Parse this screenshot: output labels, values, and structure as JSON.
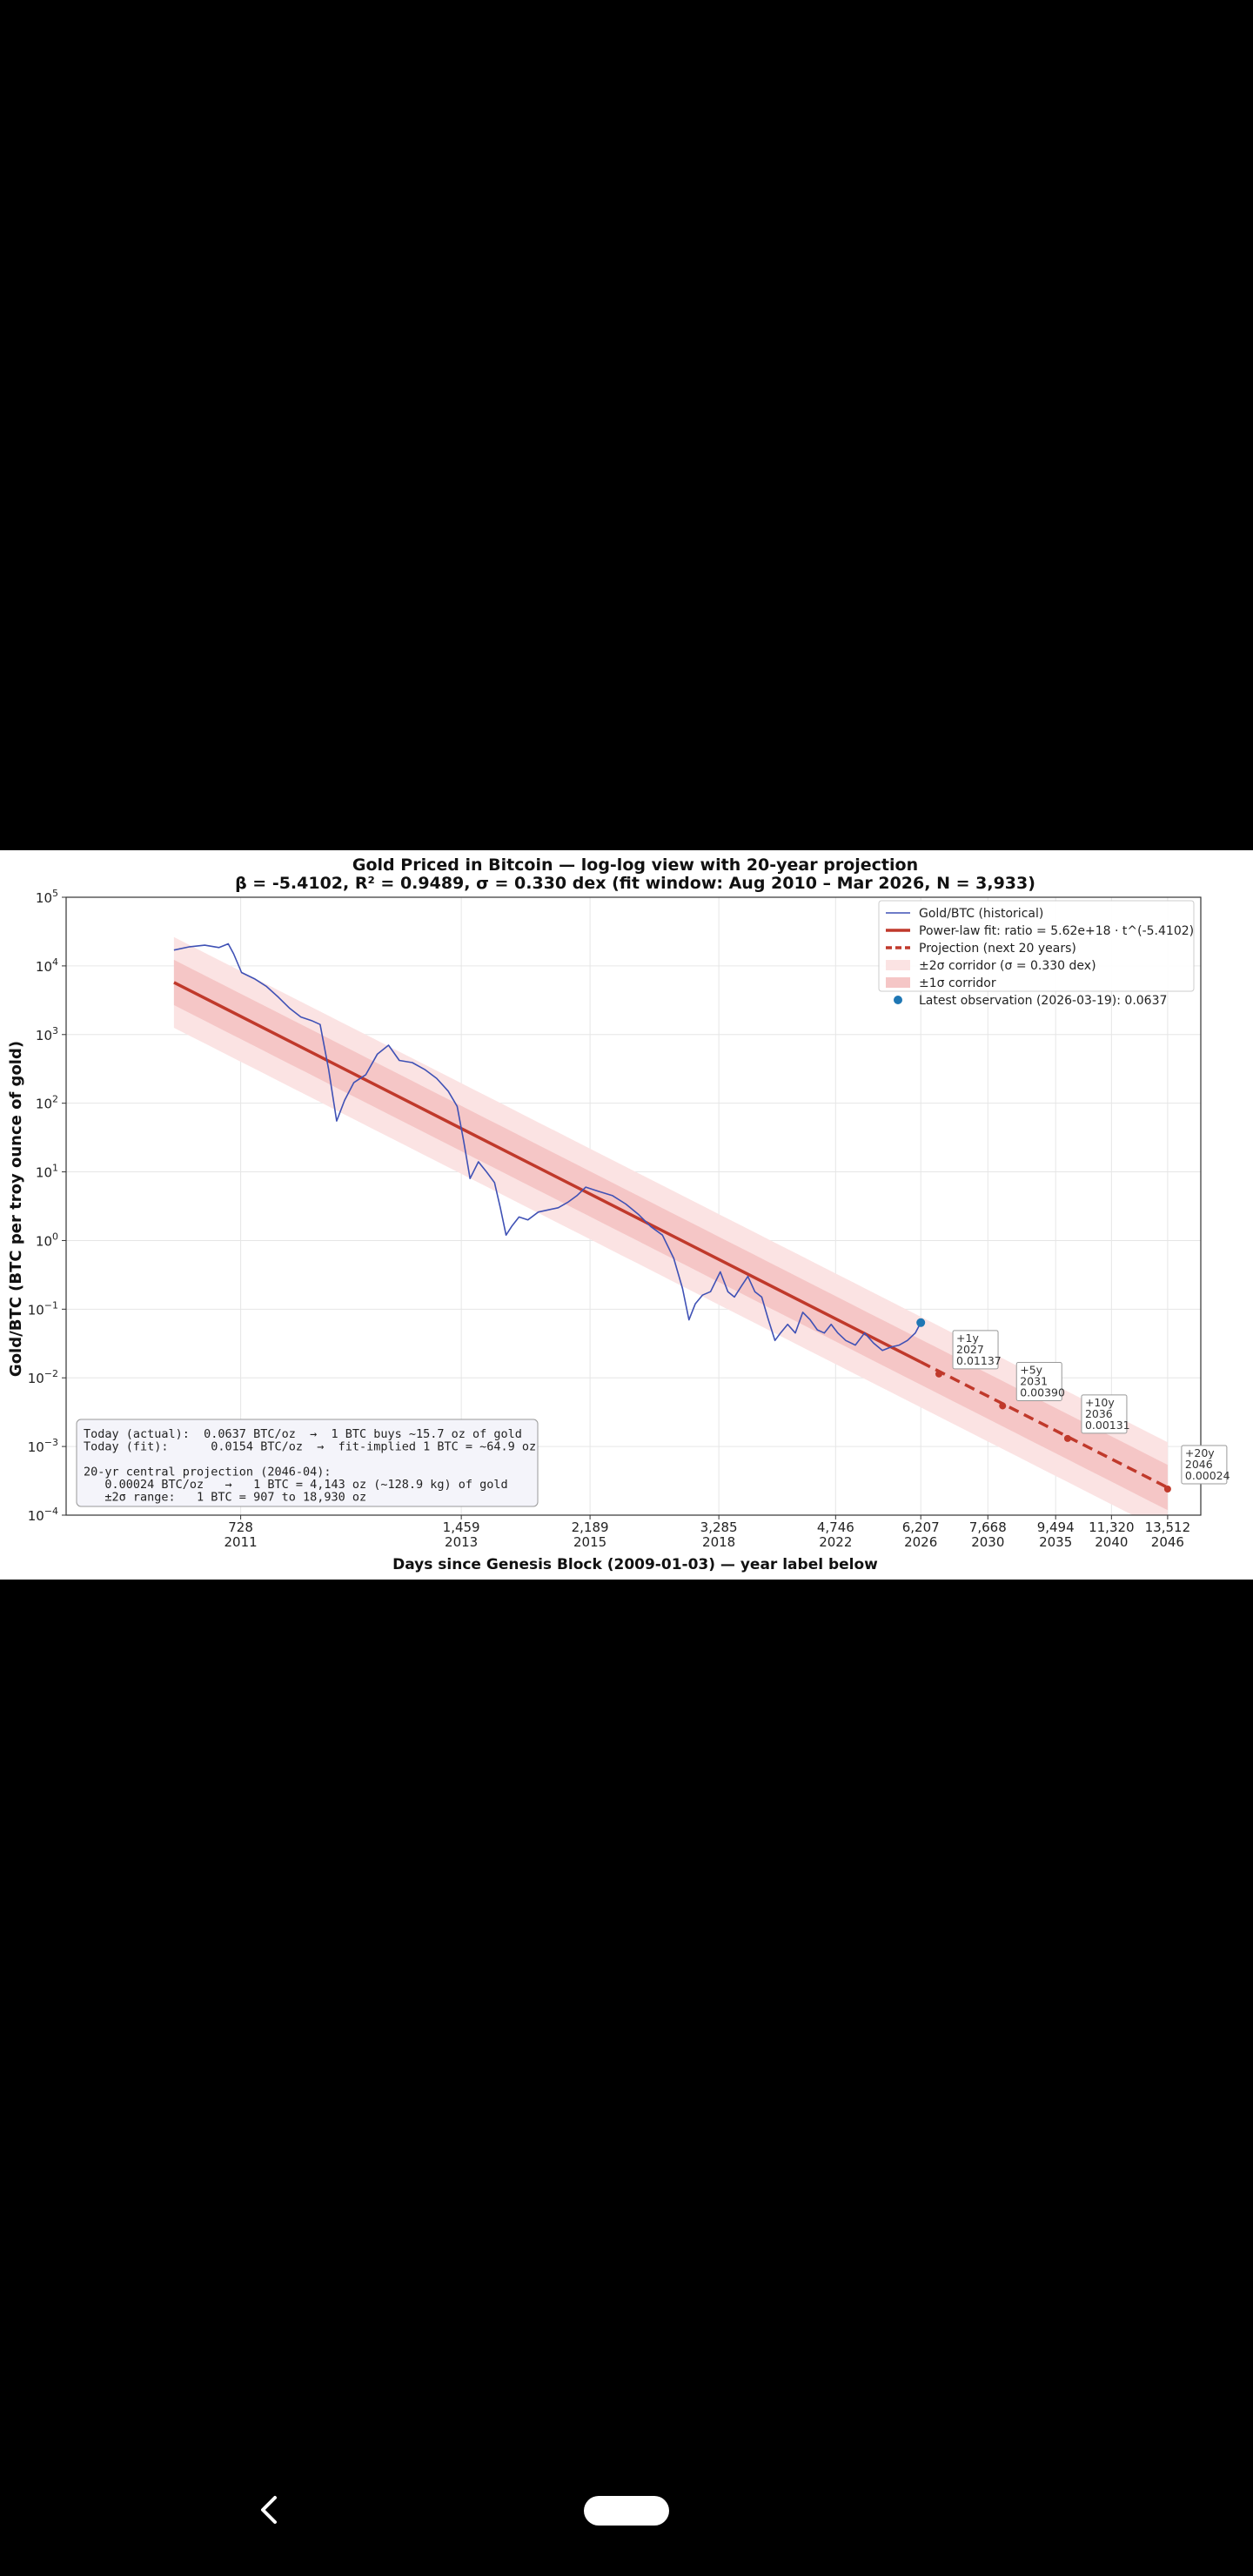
{
  "chart_data": {
    "type": "line",
    "title": "Gold Priced in Bitcoin — log-log view with 20-year projection",
    "subtitle": "β = -5.4102,   R² = 0.9489,   σ = 0.330 dex   (fit window: Aug 2010 – Mar 2026, N = 3,933)",
    "xlabel": "Days since Genesis Block (2009-01-03)   —   year label below",
    "ylabel": "Gold/BTC  (BTC per troy ounce of gold)",
    "x_scale": "log",
    "y_scale": "log",
    "xlim": [
      420,
      15000
    ],
    "ylim": [
      0.0001,
      100000
    ],
    "x_ticks": [
      {
        "day": 728,
        "label": "728",
        "year": "2011"
      },
      {
        "day": 1459,
        "label": "1,459",
        "year": "2013"
      },
      {
        "day": 2189,
        "label": "2,189",
        "year": "2015"
      },
      {
        "day": 3285,
        "label": "3,285",
        "year": "2018"
      },
      {
        "day": 4746,
        "label": "4,746",
        "year": "2022"
      },
      {
        "day": 6207,
        "label": "6,207",
        "year": "2026"
      },
      {
        "day": 7668,
        "label": "7,668",
        "year": "2030"
      },
      {
        "day": 9494,
        "label": "9,494",
        "year": "2035"
      },
      {
        "day": 11320,
        "label": "11,320",
        "year": "2040"
      },
      {
        "day": 13512,
        "label": "13,512",
        "year": "2046"
      }
    ],
    "y_ticks": [
      {
        "value": 0.0001,
        "base": "10",
        "exp": "−4"
      },
      {
        "value": 0.001,
        "base": "10",
        "exp": "−3"
      },
      {
        "value": 0.01,
        "base": "10",
        "exp": "−2"
      },
      {
        "value": 0.1,
        "base": "10",
        "exp": "−1"
      },
      {
        "value": 1,
        "base": "10",
        "exp": "0"
      },
      {
        "value": 10,
        "base": "10",
        "exp": "1"
      },
      {
        "value": 100,
        "base": "10",
        "exp": "2"
      },
      {
        "value": 1000,
        "base": "10",
        "exp": "3"
      },
      {
        "value": 10000,
        "base": "10",
        "exp": "4"
      },
      {
        "value": 100000,
        "base": "10",
        "exp": "5"
      }
    ],
    "fit": {
      "coefficient": 5.62e+18,
      "beta": -5.4102,
      "sigma_dex": 0.33,
      "x_start": 590,
      "x_end": 6207
    },
    "projection": {
      "x_start": 6207,
      "x_end": 13512
    },
    "series": [
      {
        "name": "Gold/BTC (historical)",
        "color": "#3f51b5",
        "points": [
          [
            590,
            17000
          ],
          [
            620,
            19000
          ],
          [
            650,
            20000
          ],
          [
            680,
            18500
          ],
          [
            700,
            21000
          ],
          [
            712,
            15000
          ],
          [
            730,
            8000
          ],
          [
            760,
            6500
          ],
          [
            790,
            5000
          ],
          [
            820,
            3500
          ],
          [
            850,
            2400
          ],
          [
            880,
            1800
          ],
          [
            910,
            1600
          ],
          [
            935,
            1400
          ],
          [
            960,
            320
          ],
          [
            985,
            55
          ],
          [
            1010,
            110
          ],
          [
            1040,
            200
          ],
          [
            1080,
            260
          ],
          [
            1120,
            520
          ],
          [
            1160,
            700
          ],
          [
            1200,
            420
          ],
          [
            1250,
            390
          ],
          [
            1300,
            310
          ],
          [
            1350,
            230
          ],
          [
            1400,
            150
          ],
          [
            1440,
            90
          ],
          [
            1470,
            28
          ],
          [
            1500,
            8
          ],
          [
            1540,
            14
          ],
          [
            1580,
            10
          ],
          [
            1620,
            7
          ],
          [
            1650,
            3
          ],
          [
            1680,
            1.2
          ],
          [
            1710,
            1.6
          ],
          [
            1750,
            2.2
          ],
          [
            1800,
            2.0
          ],
          [
            1860,
            2.6
          ],
          [
            1920,
            2.8
          ],
          [
            1980,
            3.0
          ],
          [
            2040,
            3.6
          ],
          [
            2100,
            4.5
          ],
          [
            2160,
            6
          ],
          [
            2250,
            5.2
          ],
          [
            2350,
            4.5
          ],
          [
            2450,
            3.4
          ],
          [
            2550,
            2.4
          ],
          [
            2650,
            1.6
          ],
          [
            2750,
            1.2
          ],
          [
            2850,
            0.55
          ],
          [
            2930,
            0.2
          ],
          [
            2990,
            0.07
          ],
          [
            3050,
            0.12
          ],
          [
            3120,
            0.16
          ],
          [
            3200,
            0.18
          ],
          [
            3300,
            0.35
          ],
          [
            3380,
            0.18
          ],
          [
            3450,
            0.15
          ],
          [
            3530,
            0.22
          ],
          [
            3600,
            0.3
          ],
          [
            3680,
            0.18
          ],
          [
            3760,
            0.15
          ],
          [
            3840,
            0.07
          ],
          [
            3920,
            0.035
          ],
          [
            3990,
            0.045
          ],
          [
            4080,
            0.06
          ],
          [
            4180,
            0.045
          ],
          [
            4280,
            0.09
          ],
          [
            4380,
            0.07
          ],
          [
            4480,
            0.05
          ],
          [
            4580,
            0.045
          ],
          [
            4680,
            0.06
          ],
          [
            4780,
            0.045
          ],
          [
            4900,
            0.035
          ],
          [
            5050,
            0.03
          ],
          [
            5200,
            0.045
          ],
          [
            5350,
            0.032
          ],
          [
            5500,
            0.025
          ],
          [
            5650,
            0.028
          ],
          [
            5800,
            0.03
          ],
          [
            5950,
            0.035
          ],
          [
            6100,
            0.045
          ],
          [
            6207,
            0.0637
          ]
        ]
      }
    ],
    "legend": [
      {
        "label": "Gold/BTC (historical)",
        "kind": "thin-line",
        "color": "#3f51b5"
      },
      {
        "label": "Power-law fit:  ratio = 5.62e+18 · t^(-5.4102)",
        "kind": "thick-line",
        "color": "#c0392b"
      },
      {
        "label": "Projection (next 20 years)",
        "kind": "dashed-line",
        "color": "#c0392b"
      },
      {
        "label": "±2σ corridor  (σ = 0.330 dex)",
        "kind": "patch",
        "color": "#fbe3e3"
      },
      {
        "label": "±1σ corridor",
        "kind": "patch",
        "color": "#f5c6c6"
      },
      {
        "label": "Latest observation (2026-03-19): 0.0637",
        "kind": "marker",
        "color": "#1f77b4"
      }
    ],
    "latest_observation": {
      "date": "2026-03-19",
      "day": 6207,
      "value": 0.0637
    },
    "projection_annotations": [
      {
        "horizon": "+1y",
        "year": "2027",
        "day": 6572,
        "value": 0.01137,
        "label": "0.01137"
      },
      {
        "horizon": "+5y",
        "year": "2031",
        "day": 8033,
        "value": 0.0039,
        "label": "0.00390"
      },
      {
        "horizon": "+10y",
        "year": "2036",
        "day": 9859,
        "value": 0.00131,
        "label": "0.00131"
      },
      {
        "horizon": "+20y",
        "year": "2046",
        "day": 13512,
        "value": 0.00024,
        "label": "0.00024"
      }
    ],
    "info_box": [
      "Today (actual):  0.0637 BTC/oz  →  1 BTC buys ~15.7 oz of gold",
      "Today (fit):      0.0154 BTC/oz  →  fit-implied 1 BTC = ~64.9 oz",
      "",
      "20-yr central projection (2046-04):",
      "   0.00024 BTC/oz   →   1 BTC = 4,143 oz (~128.9 kg) of gold",
      "   ±2σ range:   1 BTC = 907 to 18,930 oz"
    ],
    "colors": {
      "historical": "#3f51b5",
      "fit": "#c0392b",
      "band2": "#fbe3e3",
      "band1": "#f5c6c6",
      "latest": "#1f77b4"
    }
  },
  "nav": {
    "back_icon": "chevron-left-icon",
    "home_icon": "home-pill-icon"
  }
}
